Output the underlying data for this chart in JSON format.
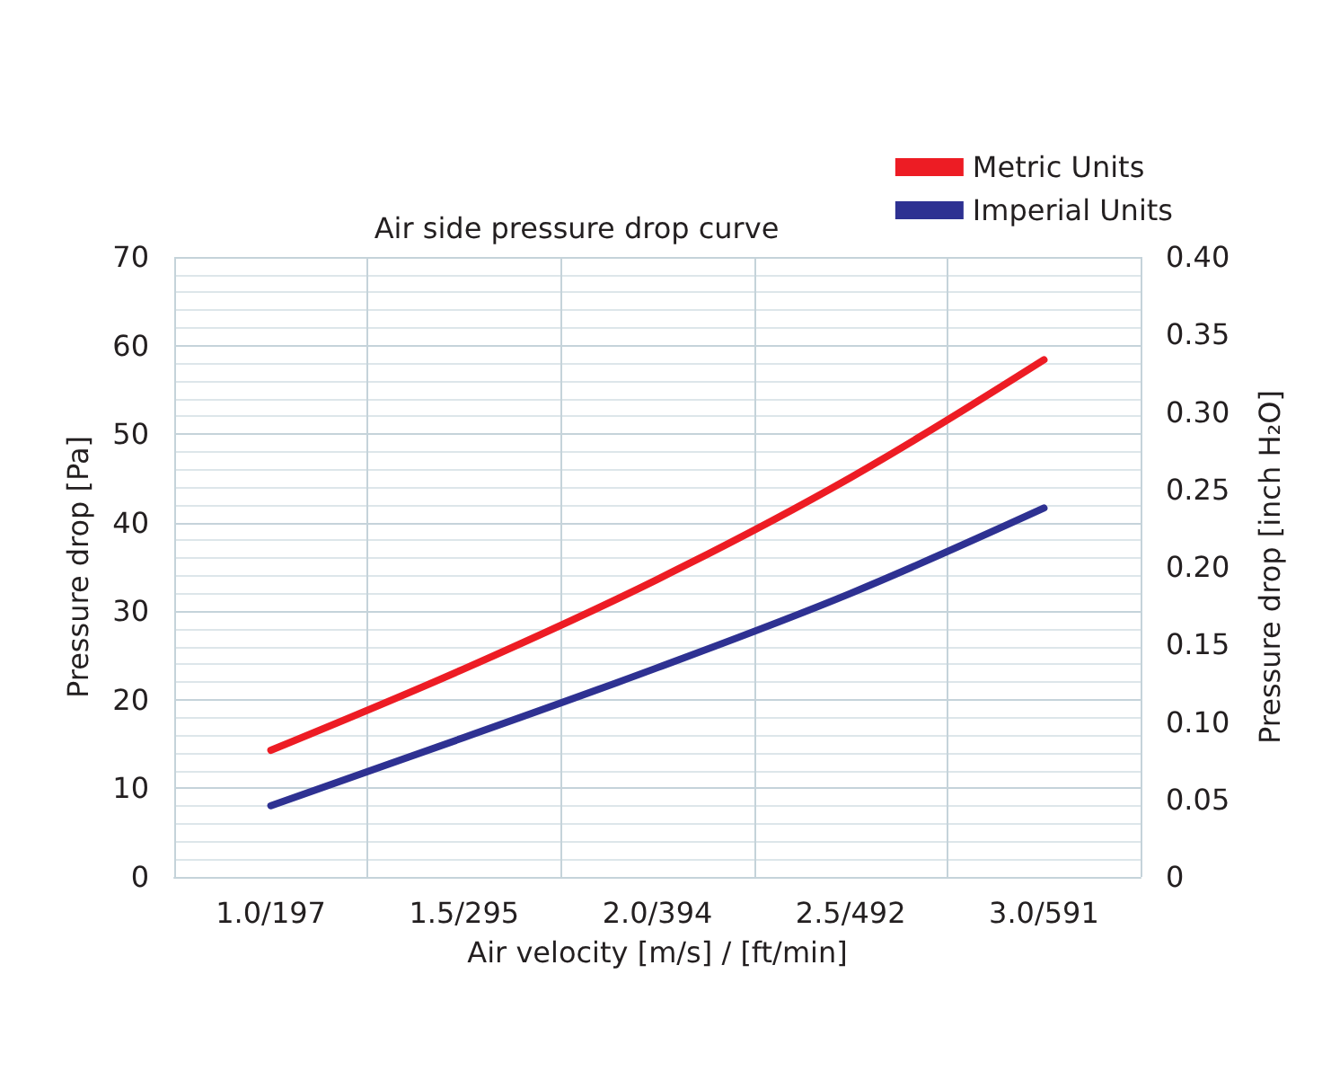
{
  "chart_data": {
    "type": "line",
    "title": "Air side pressure drop curve",
    "xlabel": "Air velocity [m/s] / [ft/min]",
    "ylabel": "Pressure drop [Pa]",
    "y2label": "Pressure drop [inch H₂O]",
    "categories": [
      "1.0/197",
      "1.5/295",
      "2.0/394",
      "2.5/492",
      "3.0/591"
    ],
    "series": [
      {
        "name": "Metric Units",
        "color": "#ed1c24",
        "values": [
          14.3,
          23.5,
          33.6,
          45.1,
          58.4
        ]
      },
      {
        "name": "Imperial Units",
        "color": "#2e3192",
        "axis": "y2",
        "values": [
          0.046,
          0.09,
          0.135,
          0.183,
          0.238
        ]
      }
    ],
    "ylim": [
      0,
      70
    ],
    "yticks": [
      0,
      10,
      20,
      30,
      40,
      50,
      60,
      70
    ],
    "y2lim": [
      0,
      0.4
    ],
    "y2ticks": [
      0,
      0.05,
      {
        "value": 0.1,
        "label": "0.10"
      },
      0.15,
      {
        "value": 0.2,
        "label": "0.20"
      },
      0.25,
      {
        "value": 0.3,
        "label": "0.30"
      },
      0.35,
      {
        "value": 0.4,
        "label": "0.40"
      }
    ],
    "grid": true,
    "legend": "top right",
    "marker": "none",
    "line_style": "solid"
  }
}
